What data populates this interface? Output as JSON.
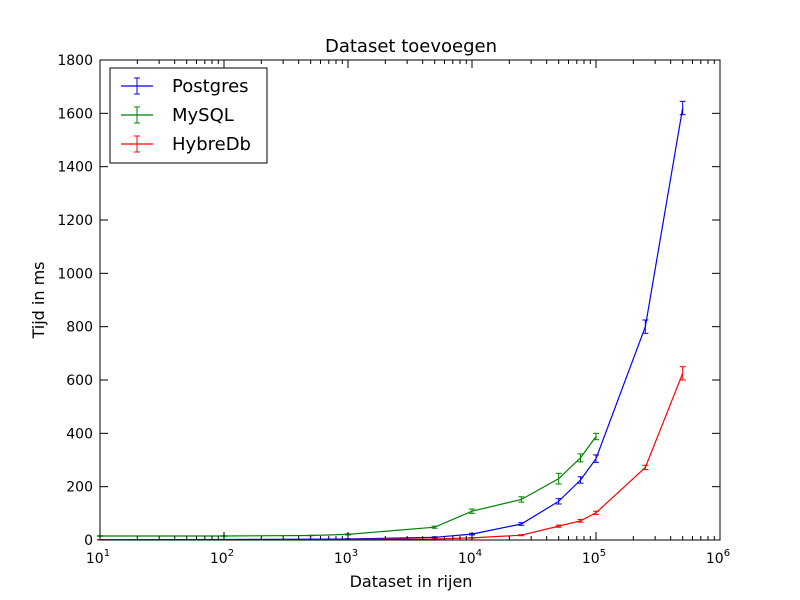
{
  "chart_data": {
    "type": "line",
    "title": "Dataset toevoegen",
    "xlabel": "Dataset in rijen",
    "ylabel": "Tijd in ms",
    "xscale": "log",
    "xlim": [
      10,
      1000000
    ],
    "ylim": [
      0,
      1800
    ],
    "x_ticks": [
      {
        "base": "10",
        "exp": "1",
        "value": 10
      },
      {
        "base": "10",
        "exp": "2",
        "value": 100
      },
      {
        "base": "10",
        "exp": "3",
        "value": 1000
      },
      {
        "base": "10",
        "exp": "4",
        "value": 10000
      },
      {
        "base": "10",
        "exp": "5",
        "value": 100000
      },
      {
        "base": "10",
        "exp": "6",
        "value": 1000000
      }
    ],
    "y_ticks": [
      "0",
      "200",
      "400",
      "600",
      "800",
      "1000",
      "1200",
      "1400",
      "1600",
      "1800"
    ],
    "grid": false,
    "legend_position": "top-left",
    "series": [
      {
        "name": "Postgres",
        "color": "#0000ff",
        "x": [
          10,
          100,
          500,
          1000,
          5000,
          10000,
          25000,
          50000,
          75000,
          100000,
          250000,
          500000
        ],
        "y": [
          1,
          2,
          3,
          4,
          10,
          22,
          60,
          145,
          225,
          305,
          800,
          1620
        ],
        "err": [
          0.5,
          0.5,
          0.5,
          1,
          2,
          3,
          5,
          10,
          12,
          14,
          25,
          25
        ]
      },
      {
        "name": "MySQL",
        "color": "#008000",
        "x": [
          10,
          100,
          500,
          1000,
          5000,
          10000,
          25000,
          50000,
          75000,
          100000
        ],
        "y": [
          15,
          15,
          17,
          21,
          48,
          108,
          152,
          230,
          308,
          388
        ],
        "err": [
          1,
          1,
          1,
          2,
          4,
          8,
          10,
          20,
          15,
          12
        ]
      },
      {
        "name": "HybreDb",
        "color": "#ff0000",
        "x": [
          10,
          100,
          500,
          1000,
          5000,
          10000,
          25000,
          50000,
          75000,
          100000,
          250000,
          500000
        ],
        "y": [
          0.5,
          1,
          1,
          2,
          4,
          8,
          18,
          52,
          72,
          102,
          272,
          625
        ],
        "err": [
          0.3,
          0.3,
          0.5,
          0.5,
          1,
          1,
          2,
          4,
          5,
          6,
          8,
          25
        ]
      }
    ]
  }
}
